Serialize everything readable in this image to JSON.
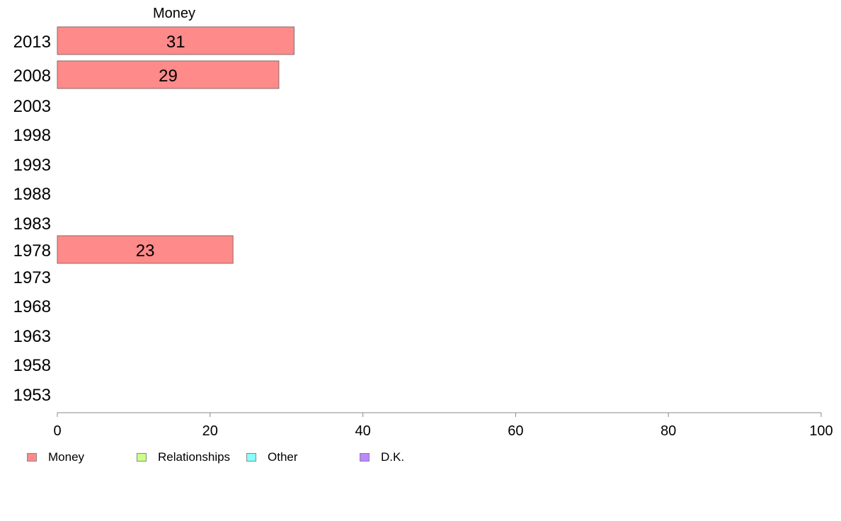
{
  "chart_data": {
    "type": "bar",
    "orientation": "horizontal",
    "stacked": true,
    "column_title": "Money",
    "categories": [
      "2013",
      "2008",
      "2003",
      "1998",
      "1993",
      "1988",
      "1983",
      "1978",
      "1973",
      "1968",
      "1963",
      "1958",
      "1953"
    ],
    "series": [
      {
        "name": "Money",
        "color": "#ff8a8a",
        "values": [
          31,
          29,
          null,
          null,
          null,
          null,
          null,
          23,
          null,
          null,
          null,
          null,
          null
        ],
        "labels": [
          "31",
          "29",
          "",
          "",
          "",
          "",
          "",
          "23",
          "",
          "",
          "",
          "",
          ""
        ]
      },
      {
        "name": "Relationships",
        "color": "#ccff88",
        "values": [
          null,
          null,
          null,
          null,
          null,
          null,
          null,
          null,
          null,
          null,
          null,
          null,
          null
        ]
      },
      {
        "name": "Other",
        "color": "#88ffff",
        "values": [
          null,
          null,
          null,
          null,
          null,
          null,
          null,
          null,
          null,
          null,
          null,
          null,
          null
        ]
      },
      {
        "name": "D.K.",
        "color": "#bb88ff",
        "values": [
          null,
          null,
          null,
          null,
          null,
          null,
          null,
          null,
          null,
          null,
          null,
          null,
          null
        ]
      }
    ],
    "x_ticks": [
      "0",
      "20",
      "40",
      "60",
      "80",
      "100"
    ],
    "xlim": [
      0,
      100
    ],
    "grid": false,
    "legend_position": "bottom-left"
  },
  "legend": [
    {
      "label": "Money",
      "color": "#ff8a8a"
    },
    {
      "label": "Relationships",
      "color": "#ccff88"
    },
    {
      "label": "Other",
      "color": "#88ffff"
    },
    {
      "label": "D.K.",
      "color": "#bb88ff"
    }
  ]
}
